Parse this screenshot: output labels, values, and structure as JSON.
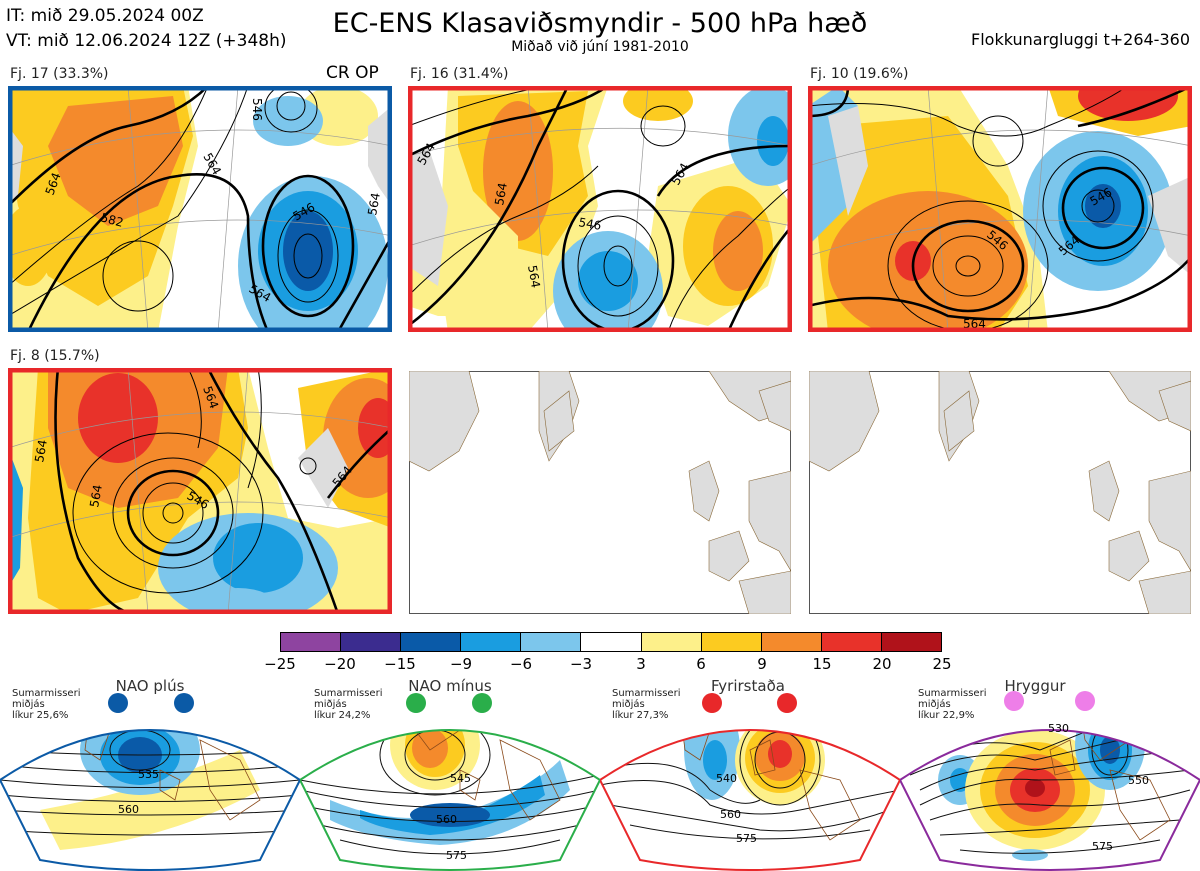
{
  "header": {
    "it": "IT: mið 29.05.2024 00Z",
    "vt": "VT: mið 12.06.2024 12Z  (+348h)",
    "title": "EC-ENS Klasaviðsmyndir - 500 hPa hæð",
    "subtitle": "Miðað við júní 1981-2010",
    "window": "Flokkunargluggi t+264-360"
  },
  "panels": [
    {
      "label": "Fj. 17 (33.3%)",
      "tag": "CR OP",
      "border": "#0b5aa6",
      "contours": [
        "564",
        "582",
        "546",
        "564",
        "564",
        "564",
        "546"
      ]
    },
    {
      "label": "Fj. 16 (31.4%)",
      "tag": "",
      "border": "#e8282a",
      "contours": [
        "564",
        "564",
        "546",
        "564",
        "564"
      ]
    },
    {
      "label": "Fj. 10 (19.6%)",
      "tag": "",
      "border": "#e8282a",
      "contours": [
        "546",
        "546",
        "564",
        "564"
      ]
    },
    {
      "label": "Fj. 8 (15.7%)",
      "tag": "",
      "border": "#e8282a",
      "contours": [
        "564",
        "546",
        "564",
        "564",
        "564"
      ]
    }
  ],
  "colorbar": {
    "ticks": [
      "−25",
      "−20",
      "−15",
      "−9",
      "−6",
      "−3",
      "3",
      "6",
      "9",
      "15",
      "20",
      "25"
    ],
    "colors": [
      "#8e44a0",
      "#3b2c8f",
      "#0a5aa8",
      "#1a9de0",
      "#7cc6ec",
      "#ffffff",
      "#fdf08a",
      "#fccb20",
      "#f48a2c",
      "#e8322a",
      "#b0121a"
    ]
  },
  "regimes": [
    {
      "name": "NAO plús",
      "season": "Sumarmisseri",
      "mean": "miðjás",
      "prob": "líkur 25,6%",
      "dot_color": "#0b5aa6",
      "border": "#0b5aa6",
      "contours": [
        "535",
        "560"
      ]
    },
    {
      "name": "NAO mínus",
      "season": "Sumarmisseri",
      "mean": "miðjás",
      "prob": "líkur 24,2%",
      "dot_color": "#2aae4a",
      "border": "#2aae4a",
      "contours": [
        "545",
        "560",
        "575"
      ]
    },
    {
      "name": "Fyrirstaða",
      "season": "Sumarmisseri",
      "mean": "miðjás",
      "prob": "líkur 27,3%",
      "dot_color": "#e8282a",
      "border": "#e8282a",
      "contours": [
        "540",
        "560",
        "575"
      ]
    },
    {
      "name": "Hryggur",
      "season": "Sumarmisseri",
      "mean": "miðjás",
      "prob": "líkur 22,9%",
      "dot_color": "#ee7ee8",
      "border": "#8a2a9c",
      "contours": [
        "530",
        "550",
        "575"
      ]
    }
  ]
}
